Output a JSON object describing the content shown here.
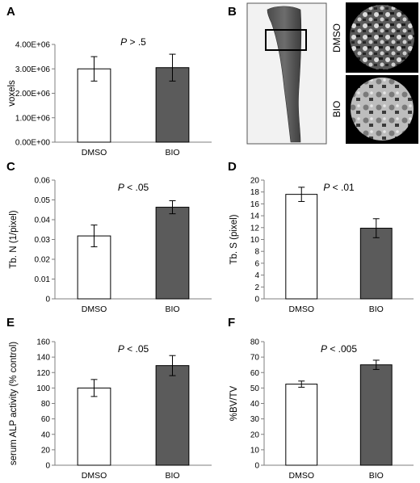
{
  "panel_b": {
    "letter": "B",
    "label_top": "DMSO",
    "label_bottom": "BIO"
  },
  "chart_data": [
    {
      "panel": "A",
      "type": "bar",
      "categories": [
        "DMSO",
        "BIO"
      ],
      "values": [
        3000000,
        3050000
      ],
      "errors": [
        500000,
        550000
      ],
      "ylabel": "voxels",
      "ylim": [
        0,
        4000000
      ],
      "yticks": [
        0,
        1000000,
        2000000,
        3000000,
        4000000
      ],
      "ytick_labels": [
        "0.00E+00",
        "1.00E+06",
        "2.00E+06",
        "3.00E+06",
        "4.00E+06"
      ],
      "p_prefix": "P",
      "p_value": " > .5",
      "bar_colors": [
        "#ffffff",
        "#5b5b5b"
      ]
    },
    {
      "panel": "C",
      "type": "bar",
      "categories": [
        "DMSO",
        "BIO"
      ],
      "values": [
        0.0318,
        0.0463
      ],
      "errors": [
        0.0055,
        0.0033
      ],
      "ylabel": "Tb. N (1/pixel)",
      "ylim": [
        0,
        0.06
      ],
      "yticks": [
        0,
        0.01,
        0.02,
        0.03,
        0.04,
        0.05,
        0.06
      ],
      "ytick_labels": [
        "0",
        "0.01",
        "0.02",
        "0.03",
        "0.04",
        "0.05",
        "0.06"
      ],
      "p_prefix": "P",
      "p_value": " < .05",
      "bar_colors": [
        "#ffffff",
        "#5b5b5b"
      ]
    },
    {
      "panel": "D",
      "type": "bar",
      "categories": [
        "DMSO",
        "BIO"
      ],
      "values": [
        17.6,
        11.9
      ],
      "errors": [
        1.2,
        1.6
      ],
      "ylabel": "Tb. S (pixel)",
      "ylim": [
        0,
        20
      ],
      "yticks": [
        0,
        2,
        4,
        6,
        8,
        10,
        12,
        14,
        16,
        18,
        20
      ],
      "ytick_labels": [
        "0",
        "2",
        "4",
        "6",
        "8",
        "10",
        "12",
        "14",
        "16",
        "18",
        "20"
      ],
      "p_prefix": "P",
      "p_value": " < .01",
      "bar_colors": [
        "#ffffff",
        "#5b5b5b"
      ]
    },
    {
      "panel": "E",
      "type": "bar",
      "categories": [
        "DMSO",
        "BIO"
      ],
      "values": [
        100,
        129
      ],
      "errors": [
        11,
        13
      ],
      "ylabel": "serum ALP activity (% control)",
      "ylim": [
        0,
        160
      ],
      "yticks": [
        0,
        20,
        40,
        60,
        80,
        100,
        120,
        140,
        160
      ],
      "ytick_labels": [
        "0",
        "20",
        "40",
        "60",
        "80",
        "100",
        "120",
        "140",
        "160"
      ],
      "p_prefix": "P",
      "p_value": " < .05",
      "bar_colors": [
        "#ffffff",
        "#5b5b5b"
      ]
    },
    {
      "panel": "F",
      "type": "bar",
      "categories": [
        "DMSO",
        "BIO"
      ],
      "values": [
        52.5,
        65
      ],
      "errors": [
        2,
        3
      ],
      "ylabel": "%BV/TV",
      "ylim": [
        0,
        80
      ],
      "yticks": [
        0,
        10,
        20,
        30,
        40,
        50,
        60,
        70,
        80
      ],
      "ytick_labels": [
        "0",
        "10",
        "20",
        "30",
        "40",
        "50",
        "60",
        "70",
        "80"
      ],
      "p_prefix": "P",
      "p_value": " < .005",
      "bar_colors": [
        "#ffffff",
        "#5b5b5b"
      ]
    }
  ]
}
